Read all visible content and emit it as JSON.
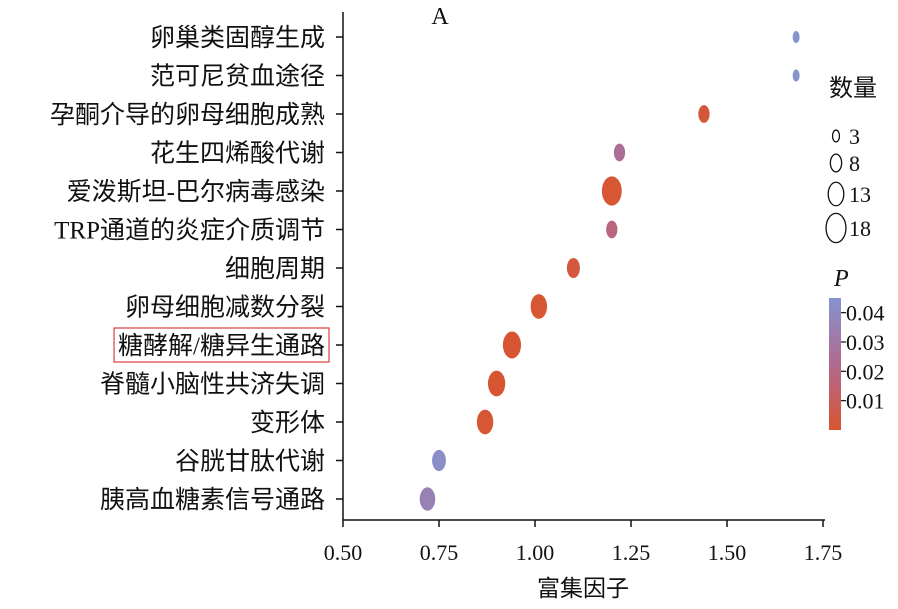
{
  "chart_data": {
    "type": "bubble",
    "panel_label": "A",
    "xlabel": "富集因子",
    "ylabel": "",
    "xlim": [
      0.5,
      1.75
    ],
    "xticks": [
      "0.50",
      "0.75",
      "1.00",
      "1.25",
      "1.50",
      "1.75"
    ],
    "xtick_values": [
      0.5,
      0.75,
      1.0,
      1.25,
      1.5,
      1.75
    ],
    "highlighted_category": "糖酵解/糖异生通路",
    "highlight_color": "#d9413e",
    "categories": [
      "卵巢类固醇生成",
      "范可尼贫血途径",
      "孕酮介导的卵母细胞成熟",
      "花生四烯酸代谢",
      "爱泼斯坦-巴尔病毒感染",
      "TRP通道的炎症介质调节",
      "细胞周期",
      "卵母细胞减数分裂",
      "糖酵解/糖异生通路",
      "脊髓小脑性共济失调",
      "变形体",
      "谷胱甘肽代谢",
      "胰高血糖素信号通路"
    ],
    "points": [
      {
        "category": "卵巢类固醇生成",
        "x": 1.68,
        "count": 3,
        "p": 0.045
      },
      {
        "category": "范可尼贫血途径",
        "x": 1.68,
        "count": 3,
        "p": 0.045
      },
      {
        "category": "孕酮介导的卵母细胞成熟",
        "x": 1.44,
        "count": 8,
        "p": 0.002
      },
      {
        "category": "花生四烯酸代谢",
        "x": 1.22,
        "count": 8,
        "p": 0.025
      },
      {
        "category": "爱泼斯坦-巴尔病毒感染",
        "x": 1.2,
        "count": 18,
        "p": 0.001
      },
      {
        "category": "TRP通道的炎症介质调节",
        "x": 1.2,
        "count": 8,
        "p": 0.018
      },
      {
        "category": "细胞周期",
        "x": 1.1,
        "count": 10,
        "p": 0.003
      },
      {
        "category": "卵母细胞减数分裂",
        "x": 1.01,
        "count": 14,
        "p": 0.001
      },
      {
        "category": "糖酵解/糖异生通路",
        "x": 0.94,
        "count": 16,
        "p": 0.0005
      },
      {
        "category": "脊髓小脑性共济失调",
        "x": 0.9,
        "count": 15,
        "p": 0.0005
      },
      {
        "category": "变形体",
        "x": 0.87,
        "count": 14,
        "p": 0.001
      },
      {
        "category": "谷胱甘肽代谢",
        "x": 0.75,
        "count": 11,
        "p": 0.042
      },
      {
        "category": "胰高血糖素信号通路",
        "x": 0.72,
        "count": 13,
        "p": 0.035
      }
    ],
    "size_legend": {
      "title": "数量",
      "entries": [
        {
          "label": "3",
          "value": 3
        },
        {
          "label": "8",
          "value": 8
        },
        {
          "label": "13",
          "value": 13
        },
        {
          "label": "18",
          "value": 18
        }
      ]
    },
    "color_legend": {
      "title": "P",
      "ticks": [
        {
          "label": "0.04",
          "value": 0.04
        },
        {
          "label": "0.03",
          "value": 0.03
        },
        {
          "label": "0.02",
          "value": 0.02
        },
        {
          "label": "0.01",
          "value": 0.01
        }
      ],
      "range": [
        0.0,
        0.045
      ],
      "low_color": "#d95530",
      "mid_color": "#b06a90",
      "high_color": "#8593cf"
    }
  }
}
